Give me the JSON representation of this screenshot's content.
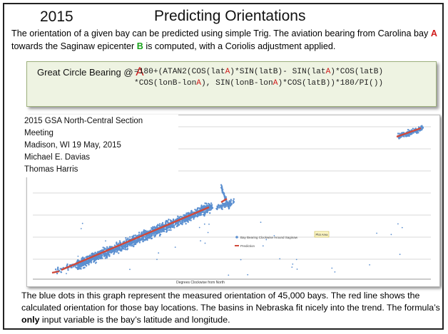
{
  "slide": {
    "year": "2015",
    "title": "Predicting Orientations",
    "intro": {
      "t1": "The orientation of a given bay can be predicted using simple Trig. The aviation bearing from Carolina bay ",
      "a": "A",
      "t2": " towards the Saginaw epicenter ",
      "b": "B",
      "t3": " is computed, with a Coriolis adjustment applied."
    },
    "formula": {
      "label": "Great Circle Bearing @ ",
      "label_a": "A",
      "code": [
        {
          "t": "=180+(ATAN2(COS(lat"
        },
        {
          "t": "A",
          "r": true
        },
        {
          "t": ")*SIN(latB)-"
        },
        {
          "t": " SIN(lat"
        },
        {
          "t": "A",
          "r": true
        },
        {
          "t": ")*COS(latB)  *COS(lonB-lon"
        },
        {
          "t": "A",
          "r": true
        },
        {
          "t": "),  SIN(lonB-lon"
        },
        {
          "t": "A",
          "r": true
        },
        {
          "t": ")*COS(latB))*180/PI())"
        }
      ]
    },
    "meeting": {
      "line1": "2015 GSA North-Central Section Meeting",
      "line2": "Madison, WI   19 May, 2015",
      "line3": "Michael E. Davias",
      "line4": "Thomas Harris"
    },
    "outro": {
      "t1": "The blue dots in this graph represent the measured orientation of 45,000 bays. The red line shows the calculated orientation for those bay locations. The basins in Nebraska fit nicely  into the trend. The formula’s ",
      "bold": "only",
      "t2": " input variable is the bay’s latitude and longitude."
    }
  },
  "chart_data": {
    "type": "scatter",
    "title": "",
    "xlabel": "Degrees Clockwise from North",
    "ylabel": "",
    "legend_position": "center-right",
    "annotation": "Plot Area",
    "colors": {
      "measured": "#5b8fd0",
      "prediction": "#d0493a"
    },
    "series": [
      {
        "name": "Bay Bearing Clockwise Around Saginaw",
        "kind": "points"
      },
      {
        "name": "Prediction",
        "kind": "line"
      }
    ]
  }
}
